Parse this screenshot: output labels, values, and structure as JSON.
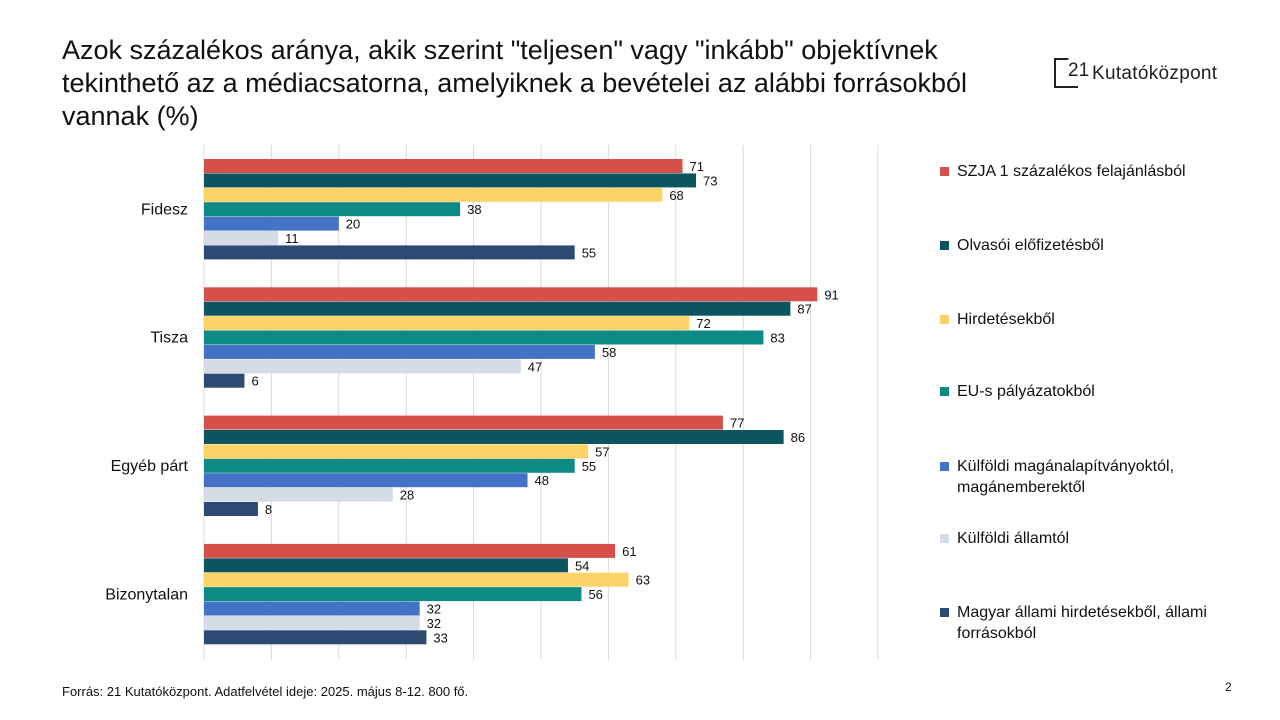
{
  "title": "Azok százalékos aránya, akik szerint \"teljesen\" vagy \"inkább\" objektívnek tekinthető az a médiacsatorna, amelyiknek a bevételei az alábbi forrásokból vannak (%)",
  "logo": {
    "number": "21",
    "text": "Kutatóközpont"
  },
  "source": "Forrás: 21 Kutatóközpont. Adatfelvétel ideje: 2025. május 8-12. 800 fő.",
  "page_number": "2",
  "chart_data": {
    "type": "bar",
    "orientation": "horizontal",
    "title": "Azok százalékos aránya, akik szerint \"teljesen\" vagy \"inkább\" objektívnek tekinthető az a médiacsatorna, amelyiknek a bevételei az alábbi forrásokból vannak (%)",
    "categories": [
      "Fidesz",
      "Tisza",
      "Egyéb párt",
      "Bizonytalan"
    ],
    "xlim": [
      0,
      100
    ],
    "grid": true,
    "legend_position": "right",
    "series": [
      {
        "name": "SZJA 1 százalékos felajánlásból",
        "color": "#D6504B",
        "values": [
          71,
          91,
          77,
          61
        ]
      },
      {
        "name": "Olvasói előfizetésből",
        "color": "#0C5560",
        "values": [
          73,
          87,
          86,
          54
        ]
      },
      {
        "name": "Hirdetésekből",
        "color": "#FDD266",
        "values": [
          68,
          72,
          57,
          63
        ]
      },
      {
        "name": "EU-s pályázatokból",
        "color": "#0E8A84",
        "values": [
          38,
          83,
          55,
          56
        ]
      },
      {
        "name": "Külföldi magánalapítványoktól, magánemberektől",
        "color": "#4472C4",
        "values": [
          20,
          58,
          48,
          32
        ]
      },
      {
        "name": "Külföldi államtól",
        "color": "#D6DCE5",
        "values": [
          11,
          47,
          28,
          32
        ]
      },
      {
        "name": "Magyar állami hirdetésekből, állami forrásokból",
        "color": "#2C4A72",
        "values": [
          55,
          6,
          8,
          33
        ]
      }
    ]
  }
}
